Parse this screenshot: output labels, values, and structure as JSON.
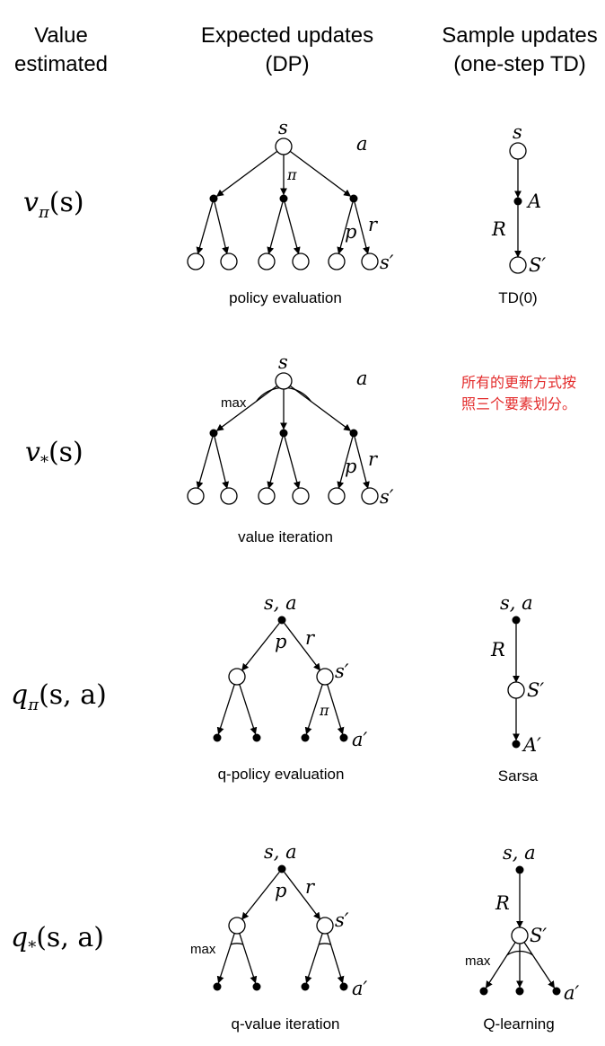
{
  "headers": {
    "col1_line1": "Value",
    "col1_line2": "estimated",
    "col2_line1": "Expected updates",
    "col2_line2": "(DP)",
    "col3_line1": "Sample updates",
    "col3_line2": "(one-step TD)"
  },
  "rows": [
    {
      "value_main": "v",
      "value_sub": "π",
      "value_arg": "(s)",
      "dp_caption": "policy evaluation",
      "td_caption": "TD(0)"
    },
    {
      "value_main": "v",
      "value_sub": "*",
      "value_arg": "(s)",
      "dp_caption": "value iteration",
      "td_caption": ""
    },
    {
      "value_main": "q",
      "value_sub": "π",
      "value_arg": "(s, a)",
      "dp_caption": "q-policy evaluation",
      "td_caption": "Sarsa"
    },
    {
      "value_main": "q",
      "value_sub": "*",
      "value_arg": "(s, a)",
      "dp_caption": "q-value iteration",
      "td_caption": "Q-learning"
    }
  ],
  "note": "所有的更新方式按照三个要素划分。",
  "labels": {
    "s": "s",
    "a": "a",
    "pi": "π",
    "p": "p",
    "r": "r",
    "s_prime": "s′",
    "A": "A",
    "R": "R",
    "S_prime": "S′",
    "A_prime": "A′",
    "a_prime": "a′",
    "sa": "s, a",
    "max": "max"
  },
  "colors": {
    "ink": "#000000",
    "note": "#e32b2b",
    "background": "#ffffff"
  }
}
